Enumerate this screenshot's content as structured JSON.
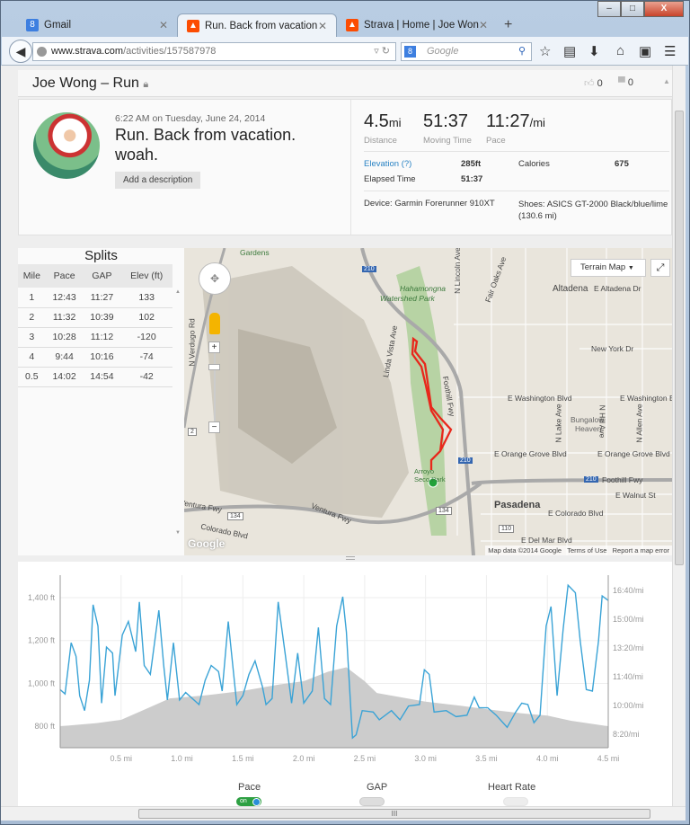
{
  "browser": {
    "tabs": [
      {
        "label": "Gmail",
        "icon": "google-icon",
        "color": "#3d7fe0"
      },
      {
        "label": "Run. Back from vacation. ...",
        "icon": "strava-icon",
        "color": "#fc4c02"
      },
      {
        "label": "Strava | Home | Joe Wong",
        "icon": "strava-icon",
        "color": "#fc4c02"
      }
    ],
    "url_domain": "www.strava.com",
    "url_path": "/activities/157587978",
    "search_placeholder": "Google",
    "minimize": "–",
    "maximize": "□",
    "close": "X",
    "new_tab": "+"
  },
  "header": {
    "title": "Joe Wong – Run",
    "kudos": "0",
    "comments": "0"
  },
  "activity": {
    "datetime": "6:22 AM on Tuesday, June 24, 2014",
    "title": "Run. Back from vacation. woah.",
    "add_description": "Add a description",
    "distance": "4.5",
    "distance_unit": "mi",
    "distance_label": "Distance",
    "moving_time": "51:37",
    "moving_time_label": "Moving Time",
    "pace": "11:27",
    "pace_unit": "/mi",
    "pace_label": "Pace",
    "elevation_label": "Elevation (?)",
    "elevation": "285ft",
    "calories_label": "Calories",
    "calories": "675",
    "elapsed_label": "Elapsed Time",
    "elapsed": "51:37",
    "device": "Device: Garmin Forerunner 910XT",
    "shoes": "Shoes: ASICS GT-2000 Black/blue/lime (130.6 mi)"
  },
  "splits": {
    "title": "Splits",
    "columns": [
      "Mile",
      "Pace",
      "GAP",
      "Elev (ft)"
    ],
    "rows": [
      [
        "1",
        "12:43",
        "11:27",
        "133"
      ],
      [
        "2",
        "11:32",
        "10:39",
        "102"
      ],
      [
        "3",
        "10:28",
        "11:12",
        "-120"
      ],
      [
        "4",
        "9:44",
        "10:16",
        "-74"
      ],
      [
        "0.5",
        "14:02",
        "14:54",
        "-42"
      ]
    ]
  },
  "map": {
    "type_select": "Terrain Map",
    "labels": {
      "park": "Hahamongna",
      "park2": "Watershed Park",
      "altadena": "Altadena",
      "altadena_dr": "E Altadena Dr",
      "newyork": "New York Dr",
      "wash1": "E Washington Blvd",
      "wash2": "E Washington Bl",
      "bungalow": "Bungalow",
      "heaven": "Heaven",
      "og1": "E Orange Grove Blvd",
      "og2": "E Orange Grove Blvd",
      "foothill": "Foothill Fwy",
      "foothill_v": "Foothill Fwy",
      "walnut": "E Walnut St",
      "pasadena": "Pasadena",
      "colorado": "E Colorado Blvd",
      "colorado_w": "Colorado Blvd",
      "delmar": "E Del Mar Blvd",
      "ventura": "Ventura Fwy",
      "ventura2": "Ventura Fwy",
      "linda": "Linda Vista Ave",
      "lincoln": "N Lincoln Ave",
      "fairoaks": "Fair Oaks Ave",
      "lake": "N Lake Ave",
      "allen": "N Allen Ave",
      "hill": "N Hill Ave",
      "verdugo": "N Verdugo Rd",
      "gardens": "Gardens",
      "arroyo": "Arroyo Seco Park",
      "r210a": "210",
      "r210b": "210",
      "r210c": "210",
      "r134a": "134",
      "r134b": "134",
      "r110": "110",
      "r2": "2"
    },
    "attribution": "Map data ©2014 Google",
    "terms": "Terms of Use",
    "report": "Report a map error",
    "logo": "Google",
    "zoom_in": "+",
    "zoom_out": "−"
  },
  "chart_data": {
    "type": "area+line",
    "x_ticks": [
      "0.5 mi",
      "1.0 mi",
      "1.5 mi",
      "2.0 mi",
      "2.5 mi",
      "3.0 mi",
      "3.5 mi",
      "4.0 mi",
      "4.5 mi"
    ],
    "xlim": [
      0,
      4.5
    ],
    "x_unit": "mi",
    "y_left_ticks": [
      "800 ft",
      "1,000 ft",
      "1,200 ft",
      "1,400 ft"
    ],
    "y_left_lim": [
      700,
      1505
    ],
    "y_right_ticks": [
      "8:20/mi",
      "10:00/mi",
      "11:40/mi",
      "13:20/mi",
      "15:00/mi",
      "16:40/mi"
    ],
    "y_right_lim": [
      "7:33",
      "17:33"
    ],
    "grid": true,
    "elevation": {
      "color": "#cccccc",
      "points": [
        [
          0,
          800
        ],
        [
          0.3,
          815
        ],
        [
          0.5,
          830
        ],
        [
          0.7,
          880
        ],
        [
          0.9,
          930
        ],
        [
          1.0,
          935
        ],
        [
          1.2,
          945
        ],
        [
          1.5,
          965
        ],
        [
          1.8,
          995
        ],
        [
          2.0,
          1010
        ],
        [
          2.2,
          1055
        ],
        [
          2.35,
          1075
        ],
        [
          2.5,
          1010
        ],
        [
          2.6,
          955
        ],
        [
          3.0,
          915
        ],
        [
          3.3,
          895
        ],
        [
          3.5,
          880
        ],
        [
          3.8,
          860
        ],
        [
          4.0,
          850
        ],
        [
          4.2,
          825
        ],
        [
          4.5,
          800
        ]
      ]
    },
    "pace": {
      "color": "#3aa3d6",
      "points": [
        [
          0,
          "10:55"
        ],
        [
          0.04,
          "10:40"
        ],
        [
          0.09,
          "13:38"
        ],
        [
          0.13,
          "12:51"
        ],
        [
          0.16,
          "10:34"
        ],
        [
          0.2,
          "9:42"
        ],
        [
          0.24,
          "11:27"
        ],
        [
          0.27,
          "15:50"
        ],
        [
          0.31,
          "14:36"
        ],
        [
          0.34,
          "10:08"
        ],
        [
          0.38,
          "13:23"
        ],
        [
          0.43,
          "13:02"
        ],
        [
          0.45,
          "10:34"
        ],
        [
          0.51,
          "14:05"
        ],
        [
          0.56,
          "14:52"
        ],
        [
          0.62,
          "13:07"
        ],
        [
          0.65,
          "16:00"
        ],
        [
          0.69,
          "12:19"
        ],
        [
          0.74,
          "11:48"
        ],
        [
          0.76,
          "12:51"
        ],
        [
          0.81,
          "15:31"
        ],
        [
          0.85,
          "12:19"
        ],
        [
          0.88,
          "10:19"
        ],
        [
          0.93,
          "13:38"
        ],
        [
          0.98,
          "10:19"
        ],
        [
          1.03,
          "10:45"
        ],
        [
          1.14,
          "10:03"
        ],
        [
          1.19,
          "11:27"
        ],
        [
          1.24,
          "12:19"
        ],
        [
          1.3,
          "11:58"
        ],
        [
          1.33,
          "10:50"
        ],
        [
          1.38,
          "14:52"
        ],
        [
          1.45,
          "10:03"
        ],
        [
          1.5,
          "10:34"
        ],
        [
          1.55,
          "11:48"
        ],
        [
          1.6,
          "12:35"
        ],
        [
          1.66,
          "11:06"
        ],
        [
          1.69,
          "10:03"
        ],
        [
          1.74,
          "10:24"
        ],
        [
          1.79,
          "16:00"
        ],
        [
          1.85,
          "12:51"
        ],
        [
          1.9,
          "10:08"
        ],
        [
          1.95,
          "13:02"
        ],
        [
          2.0,
          "10:08"
        ],
        [
          2.07,
          "10:50"
        ],
        [
          2.12,
          "14:31"
        ],
        [
          2.17,
          "10:24"
        ],
        [
          2.22,
          "10:03"
        ],
        [
          2.27,
          "14:36"
        ],
        [
          2.32,
          "16:18"
        ],
        [
          2.35,
          "14:15"
        ],
        [
          2.4,
          "8:07"
        ],
        [
          2.43,
          "8:18"
        ],
        [
          2.48,
          "9:42"
        ],
        [
          2.57,
          "9:37"
        ],
        [
          2.62,
          "9:10"
        ],
        [
          2.72,
          "9:42"
        ],
        [
          2.79,
          "9:10"
        ],
        [
          2.86,
          "9:58"
        ],
        [
          2.95,
          "10:03"
        ],
        [
          2.99,
          "12:04"
        ],
        [
          3.03,
          "11:48"
        ],
        [
          3.07,
          "9:37"
        ],
        [
          3.17,
          "9:42"
        ],
        [
          3.25,
          "9:21"
        ],
        [
          3.34,
          "9:26"
        ],
        [
          3.4,
          "10:29"
        ],
        [
          3.44,
          "9:52"
        ],
        [
          3.51,
          "9:52"
        ],
        [
          3.58,
          "9:26"
        ],
        [
          3.67,
          "8:44"
        ],
        [
          3.74,
          "9:37"
        ],
        [
          3.79,
          "10:08"
        ],
        [
          3.84,
          "10:03"
        ],
        [
          3.89,
          "9:00"
        ],
        [
          3.94,
          "9:26"
        ],
        [
          3.99,
          "14:36"
        ],
        [
          4.03,
          "15:44"
        ],
        [
          4.08,
          "10:34"
        ],
        [
          4.13,
          "14:26"
        ],
        [
          4.17,
          "16:58"
        ],
        [
          4.23,
          "16:32"
        ],
        [
          4.27,
          "13:44"
        ],
        [
          4.32,
          "10:55"
        ],
        [
          4.37,
          "10:50"
        ],
        [
          4.42,
          "13:44"
        ],
        [
          4.45,
          "16:21"
        ],
        [
          4.5,
          "16:05"
        ]
      ]
    }
  },
  "toggles": [
    {
      "label": "Pace",
      "state": "on",
      "on_text": "on"
    },
    {
      "label": "GAP",
      "state": "off"
    },
    {
      "label": "Heart Rate",
      "state": "off"
    }
  ],
  "scroll_grip": "III"
}
